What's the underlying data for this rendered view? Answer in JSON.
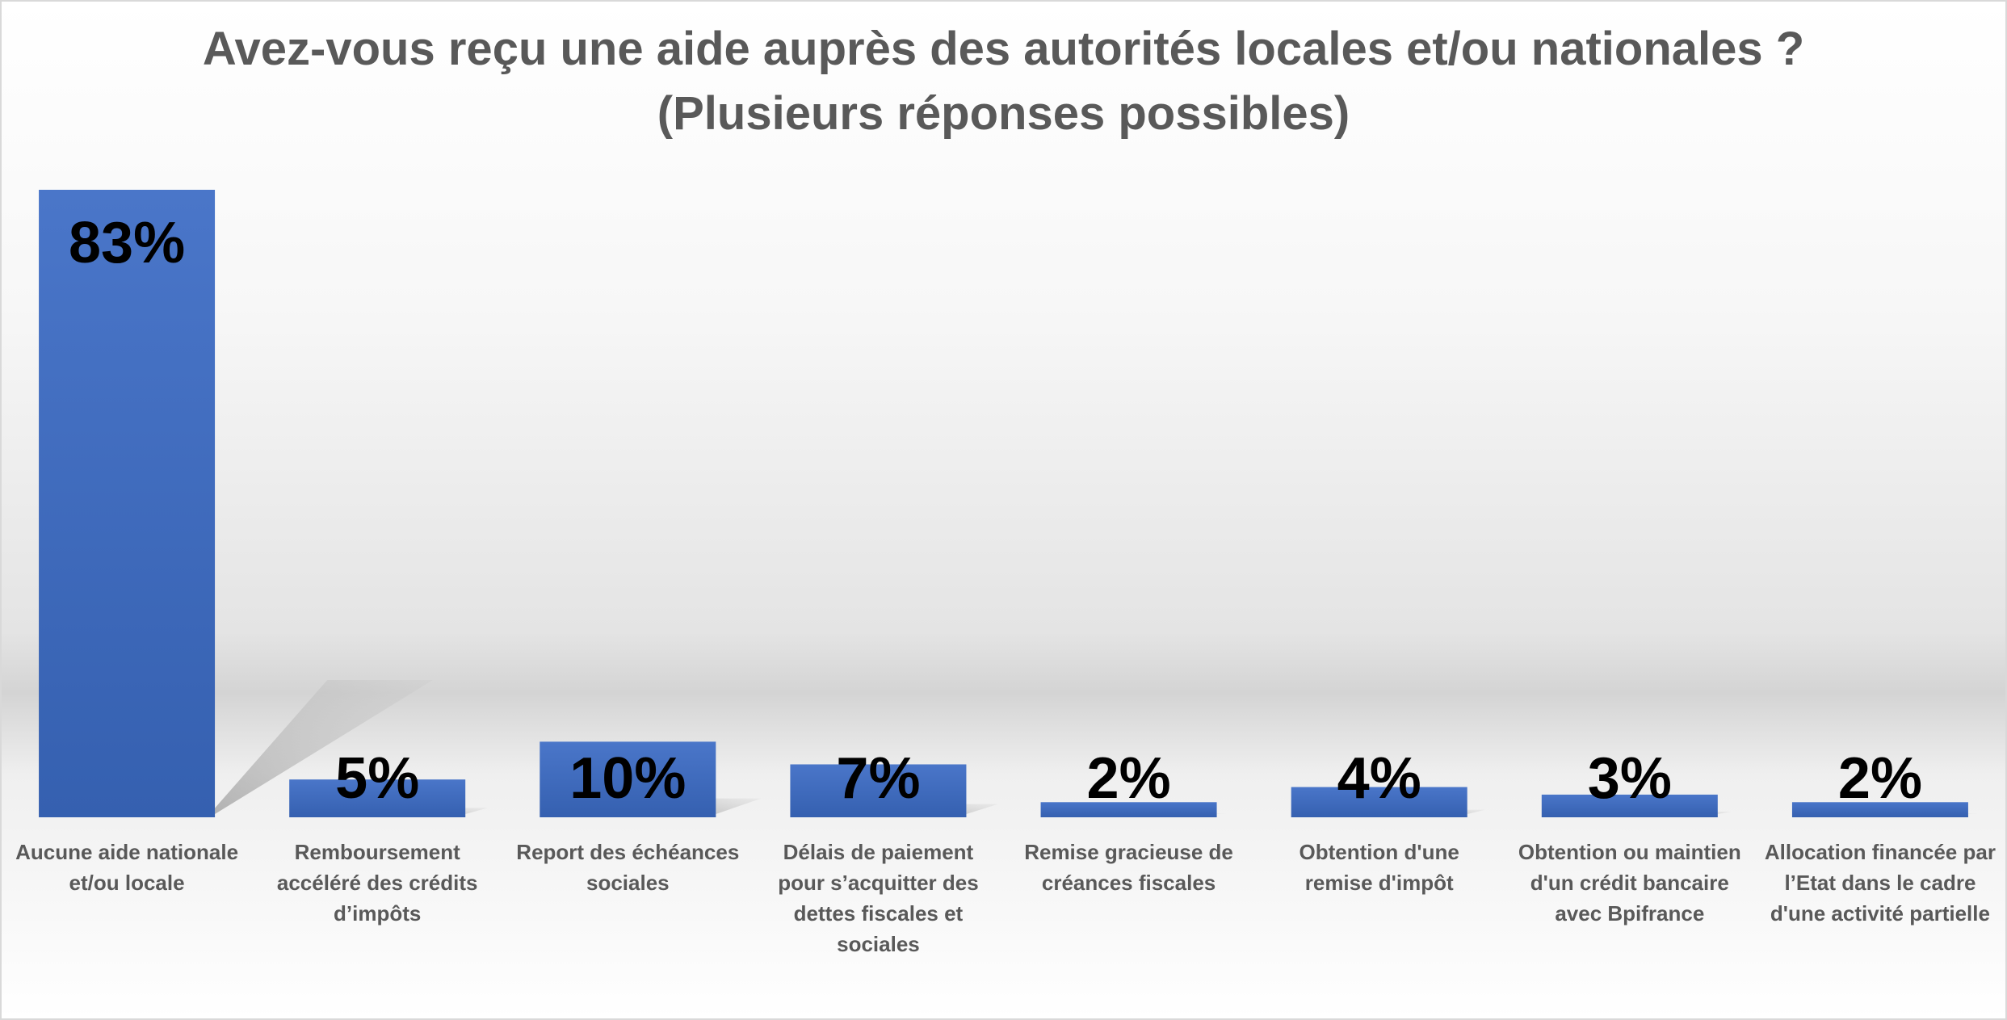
{
  "chart_data": {
    "type": "bar",
    "title": "Avez-vous reçu une aide auprès des autorités locales et/ou nationales ?",
    "subtitle": "(Plusieurs réponses possibles)",
    "categories": [
      [
        "Aucune aide nationale",
        "et/ou locale"
      ],
      [
        "Remboursement",
        "accéléré des crédits",
        "d’impôts"
      ],
      [
        "Report des échéances",
        "sociales"
      ],
      [
        "Délais de paiement",
        "pour s’acquitter des",
        "dettes fiscales et",
        "sociales"
      ],
      [
        "Remise gracieuse de",
        "créances fiscales"
      ],
      [
        "Obtention d'une",
        "remise d'impôt"
      ],
      [
        "Obtention ou maintien",
        "d'un crédit bancaire",
        "avec Bpifrance"
      ],
      [
        "Allocation financée par",
        "l’Etat dans le cadre",
        "d'une activité partielle"
      ]
    ],
    "values": [
      83,
      5,
      10,
      7,
      2,
      4,
      3,
      2
    ],
    "value_labels": [
      "83%",
      "5%",
      "10%",
      "7%",
      "2%",
      "4%",
      "3%",
      "2%"
    ],
    "unit": "%",
    "ylim": [
      0,
      83
    ],
    "grid": false,
    "legend": "none",
    "colors": {
      "bar_top": "#4a76c9",
      "bar_bottom": "#3560b0",
      "label": "#595959",
      "value": "#000000"
    }
  }
}
